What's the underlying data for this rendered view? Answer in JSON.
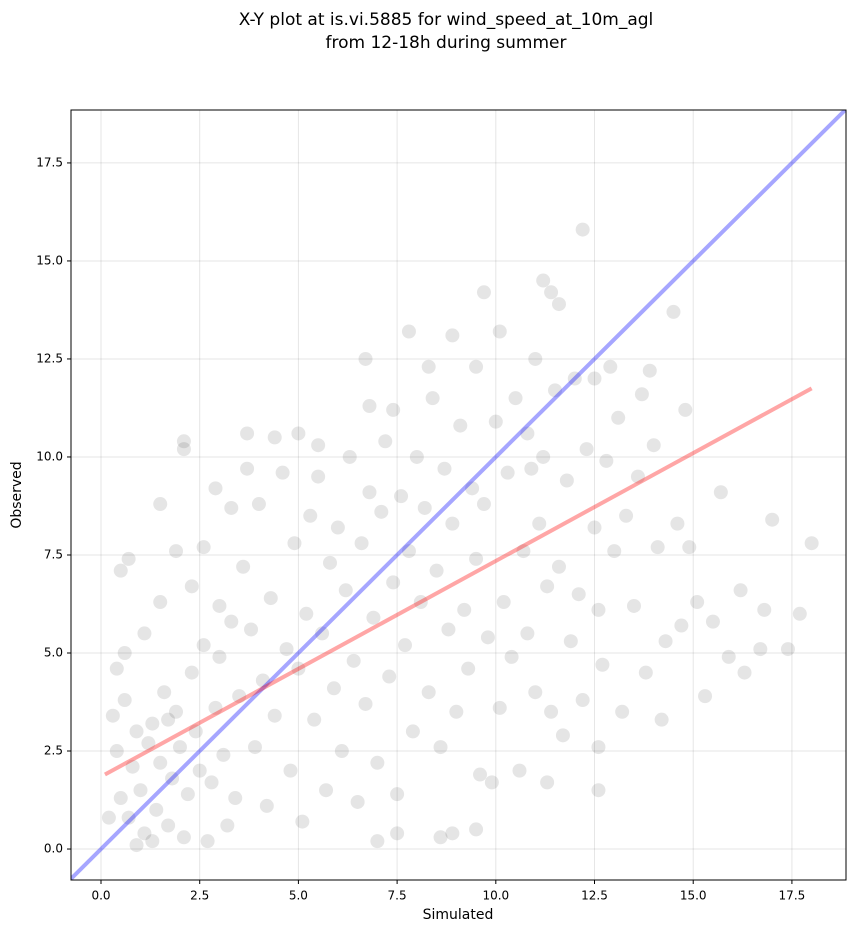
{
  "chart_data": {
    "type": "scatter",
    "title": "X-Y plot at is.vi.5885 for wind_speed_at_10m_agl",
    "subtitle": "from 12-18h during summer",
    "x_label": "Simulated",
    "y_label": "Observed",
    "xlim": [
      -0.76,
      18.87
    ],
    "ylim": [
      -0.79,
      18.85
    ],
    "xticks": [
      {
        "value": 0,
        "label": "0.0"
      },
      2.5,
      {
        "value": 5,
        "label": "5.0"
      },
      7.5,
      {
        "value": 10,
        "label": "10.0"
      },
      12.5,
      {
        "value": 15,
        "label": "15.0"
      },
      17.5
    ],
    "yticks": [
      {
        "value": 0,
        "label": "0.0"
      },
      2.5,
      {
        "value": 5,
        "label": "5.0"
      },
      7.5,
      {
        "value": 10,
        "label": "10.0"
      },
      12.5,
      {
        "value": 15,
        "label": "15.0"
      },
      17.5
    ],
    "grid": true,
    "series": [
      {
        "mode": "markers",
        "color": "#000000",
        "alpha": 0.1,
        "x": [
          12.2,
          9.7,
          11.2,
          11.4,
          11.6,
          14.5,
          7.8,
          10.1,
          8.9,
          6.7,
          17.0,
          18.0,
          17.7,
          17.4,
          15.7,
          15.3,
          14.2,
          16.3,
          16.8,
          15.9,
          16.2,
          12.6,
          12.6,
          11.3,
          9.9,
          8.6,
          8.9,
          9.5,
          7.5,
          7.0,
          2.1,
          2.1,
          3.7,
          1.5,
          0.7,
          0.5,
          4.4,
          5.0,
          14.8,
          13.7,
          13.9,
          13.1,
          12.9,
          0.3,
          0.4,
          0.5,
          0.6,
          0.7,
          0.8,
          0.9,
          1.0,
          1.1,
          1.2,
          1.3,
          1.4,
          1.5,
          1.6,
          1.7,
          1.8,
          1.9,
          2.0,
          2.1,
          2.2,
          2.3,
          2.4,
          2.5,
          2.6,
          2.7,
          2.8,
          2.9,
          3.0,
          3.1,
          3.2,
          3.3,
          3.4,
          3.5,
          0.2,
          0.6,
          1.1,
          0.9,
          1.5,
          1.9,
          2.3,
          2.6,
          3.0,
          0.4,
          1.3,
          1.7,
          3.6,
          3.8,
          3.9,
          4.0,
          4.1,
          4.2,
          4.3,
          4.4,
          4.6,
          4.7,
          4.8,
          4.9,
          5.0,
          5.1,
          5.2,
          5.3,
          5.4,
          5.5,
          5.6,
          5.7,
          5.8,
          5.9,
          6.0,
          6.1,
          6.2,
          6.3,
          6.4,
          6.5,
          6.6,
          6.7,
          6.8,
          6.9,
          7.0,
          7.1,
          7.2,
          7.3,
          7.4,
          7.5,
          7.6,
          7.7,
          7.8,
          7.9,
          8.0,
          8.1,
          8.2,
          8.3,
          8.4,
          8.5,
          8.6,
          8.7,
          8.8,
          8.9,
          9.0,
          9.1,
          9.2,
          9.3,
          9.4,
          9.5,
          9.6,
          9.7,
          9.8,
          10.0,
          10.1,
          10.2,
          10.3,
          10.4,
          10.5,
          10.6,
          10.7,
          10.8,
          10.9,
          11.0,
          11.1,
          11.2,
          11.3,
          11.4,
          11.5,
          11.6,
          11.7,
          11.8,
          11.9,
          12.0,
          12.1,
          12.2,
          12.3,
          12.5,
          12.6,
          12.7,
          12.8,
          13.0,
          13.2,
          13.3,
          13.5,
          13.6,
          13.8,
          14.0,
          14.1,
          14.3,
          14.6,
          14.7,
          14.9,
          15.1,
          15.5,
          16.7,
          12.5,
          11.0,
          10.8,
          9.5,
          8.3,
          7.4,
          6.8,
          5.5,
          2.9,
          3.3,
          3.7
        ],
        "values": [
          15.8,
          14.2,
          14.5,
          14.2,
          13.9,
          13.7,
          13.2,
          13.2,
          13.1,
          12.5,
          8.4,
          7.8,
          6.0,
          5.1,
          9.1,
          3.9,
          3.3,
          4.5,
          6.1,
          4.9,
          6.6,
          1.5,
          2.6,
          1.7,
          1.7,
          0.3,
          0.4,
          0.5,
          0.4,
          0.2,
          10.4,
          10.2,
          10.6,
          8.8,
          7.4,
          7.1,
          10.5,
          10.6,
          11.2,
          11.6,
          12.2,
          11.0,
          12.3,
          3.4,
          2.5,
          1.3,
          3.8,
          0.8,
          2.1,
          3.0,
          1.5,
          0.4,
          2.7,
          3.2,
          1.0,
          2.2,
          4.0,
          0.6,
          1.8,
          3.5,
          2.6,
          0.3,
          1.4,
          4.5,
          3.0,
          2.0,
          5.2,
          0.2,
          1.7,
          3.6,
          4.9,
          2.4,
          0.6,
          5.8,
          1.3,
          3.9,
          0.8,
          5.0,
          5.5,
          0.1,
          6.3,
          7.6,
          6.7,
          7.7,
          6.2,
          4.6,
          0.2,
          3.3,
          7.2,
          5.6,
          2.6,
          8.8,
          4.3,
          1.1,
          6.4,
          3.4,
          9.6,
          5.1,
          2.0,
          7.8,
          4.6,
          0.7,
          6.0,
          8.5,
          3.3,
          9.5,
          5.5,
          1.5,
          7.3,
          4.1,
          8.2,
          2.5,
          6.6,
          10.0,
          4.8,
          1.2,
          7.8,
          3.7,
          9.1,
          5.9,
          2.2,
          8.6,
          10.4,
          4.4,
          6.8,
          1.4,
          9.0,
          5.2,
          7.6,
          3.0,
          10.0,
          6.3,
          8.7,
          4.0,
          11.5,
          7.1,
          2.6,
          9.7,
          5.6,
          8.3,
          3.5,
          10.8,
          6.1,
          4.6,
          9.2,
          7.4,
          1.9,
          8.8,
          5.4,
          10.9,
          3.6,
          6.3,
          9.6,
          4.9,
          11.5,
          2.0,
          7.6,
          5.5,
          9.7,
          4.0,
          8.3,
          10.0,
          6.7,
          3.5,
          11.7,
          7.2,
          2.9,
          9.4,
          5.3,
          12.0,
          6.5,
          3.8,
          10.2,
          8.2,
          6.1,
          4.7,
          9.9,
          7.6,
          3.5,
          8.5,
          6.2,
          9.5,
          4.5,
          10.3,
          7.7,
          5.3,
          8.3,
          5.7,
          7.7,
          6.3,
          5.8,
          5.1,
          12.0,
          12.5,
          10.6,
          12.3,
          12.3,
          11.2,
          11.3,
          10.3,
          9.2,
          8.7,
          9.7
        ]
      },
      {
        "mode": "line",
        "color": "#0000ff",
        "alpha": 0.35,
        "x": [
          -0.76,
          18.87
        ],
        "values": [
          -0.76,
          18.87
        ]
      },
      {
        "mode": "line",
        "color": "#ff0000",
        "alpha": 0.35,
        "x": [
          0.1,
          18.0
        ],
        "values": [
          1.9,
          11.75
        ]
      }
    ]
  }
}
